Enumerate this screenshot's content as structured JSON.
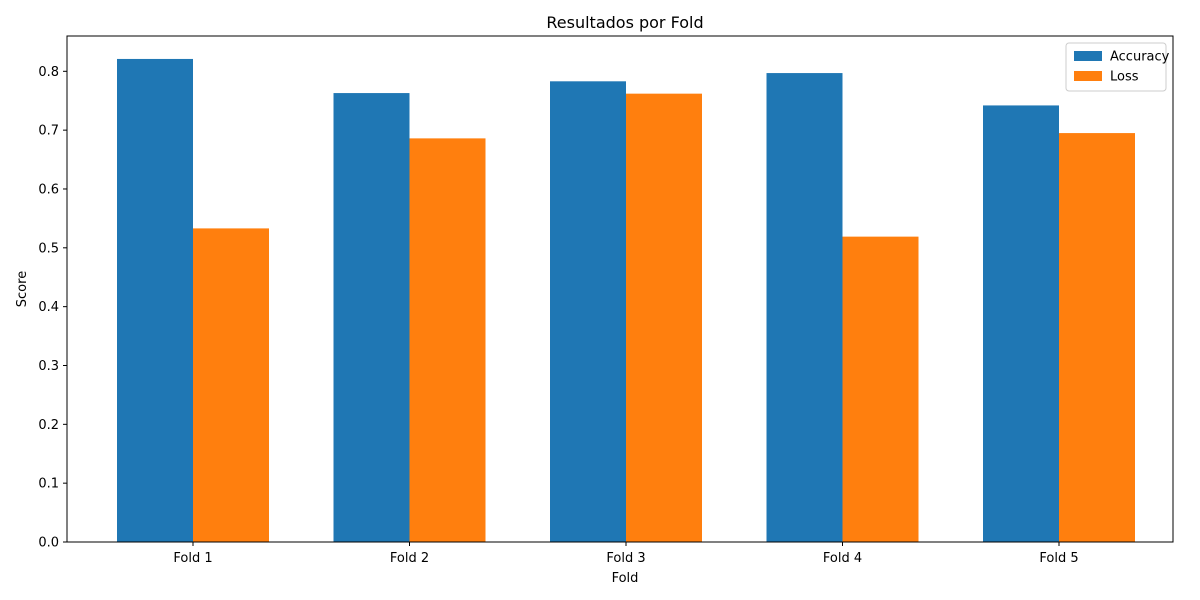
{
  "chart_data": {
    "type": "bar",
    "title": "Resultados por Fold",
    "xlabel": "Fold",
    "ylabel": "Score",
    "categories": [
      "Fold 1",
      "Fold 2",
      "Fold 3",
      "Fold 4",
      "Fold 5"
    ],
    "series": [
      {
        "name": "Accuracy",
        "color": "#1f77b4",
        "values": [
          0.821,
          0.763,
          0.783,
          0.797,
          0.742
        ]
      },
      {
        "name": "Loss",
        "color": "#ff7f0e",
        "values": [
          0.533,
          0.686,
          0.762,
          0.519,
          0.695
        ]
      }
    ],
    "ylim": [
      0,
      0.86
    ],
    "yticks": [
      0.0,
      0.1,
      0.2,
      0.3,
      0.4,
      0.5,
      0.6,
      0.7,
      0.8
    ],
    "ytick_labels": [
      "0.0",
      "0.1",
      "0.2",
      "0.3",
      "0.4",
      "0.5",
      "0.6",
      "0.7",
      "0.8"
    ],
    "grid": false,
    "legend_position": "top-right"
  }
}
